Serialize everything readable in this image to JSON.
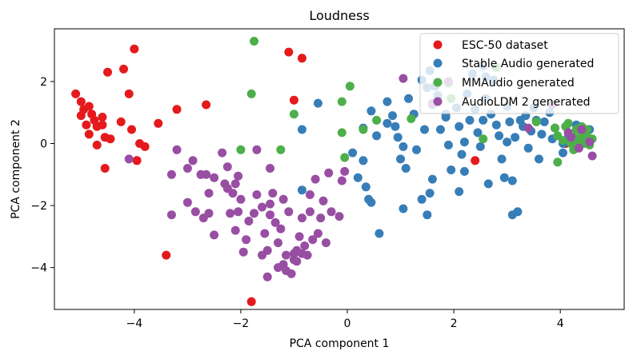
{
  "chart_data": {
    "type": "scatter",
    "title": "Loudness",
    "xlabel": "PCA component 1",
    "ylabel": "PCA component 2",
    "xlim": [
      -5.5,
      5.2
    ],
    "ylim": [
      -5.35,
      3.7
    ],
    "xticks": [
      -4,
      -2,
      0,
      2,
      4
    ],
    "yticks": [
      -4,
      -2,
      0,
      2
    ],
    "grid": false,
    "legend_position": "top-right",
    "series": [
      {
        "name": "ESC-50 dataset",
        "color": "#e41a1c",
        "points": [
          [
            -5.1,
            1.6
          ],
          [
            -5.0,
            1.35
          ],
          [
            -4.95,
            1.1
          ],
          [
            -5.0,
            0.9
          ],
          [
            -4.85,
            1.2
          ],
          [
            -4.8,
            0.95
          ],
          [
            -4.75,
            0.75
          ],
          [
            -4.9,
            0.6
          ],
          [
            -4.7,
            0.55
          ],
          [
            -4.6,
            0.85
          ],
          [
            -4.6,
            0.6
          ],
          [
            -4.85,
            0.3
          ],
          [
            -4.7,
            -0.05
          ],
          [
            -4.55,
            0.2
          ],
          [
            -4.45,
            0.15
          ],
          [
            -4.55,
            -0.8
          ],
          [
            -4.25,
            0.7
          ],
          [
            -4.05,
            0.45
          ],
          [
            -4.1,
            1.6
          ],
          [
            -3.9,
            0.0
          ],
          [
            -3.8,
            -0.1
          ],
          [
            -3.95,
            -0.55
          ],
          [
            -3.55,
            0.65
          ],
          [
            -4.5,
            2.3
          ],
          [
            -4.2,
            2.4
          ],
          [
            -4.0,
            3.05
          ],
          [
            -3.2,
            1.1
          ],
          [
            -2.65,
            1.25
          ],
          [
            -1.1,
            2.95
          ],
          [
            -0.85,
            2.75
          ],
          [
            -1.0,
            1.4
          ],
          [
            -3.4,
            -3.6
          ],
          [
            -1.8,
            -5.1
          ],
          [
            2.4,
            -0.55
          ],
          [
            4.1,
            0.0
          ]
        ]
      },
      {
        "name": "Stable Audio generated",
        "color": "#377eb8",
        "points": [
          [
            -0.55,
            1.3
          ],
          [
            -0.85,
            0.45
          ],
          [
            -0.85,
            -1.5
          ],
          [
            0.3,
            0.5
          ],
          [
            0.45,
            1.05
          ],
          [
            0.55,
            0.25
          ],
          [
            0.1,
            -0.3
          ],
          [
            0.2,
            -1.1
          ],
          [
            0.35,
            -1.4
          ],
          [
            0.4,
            -1.8
          ],
          [
            0.6,
            -2.9
          ],
          [
            0.75,
            1.35
          ],
          [
            0.85,
            0.9
          ],
          [
            0.9,
            0.55
          ],
          [
            0.95,
            0.2
          ],
          [
            1.0,
            -0.5
          ],
          [
            1.05,
            -0.1
          ],
          [
            1.15,
            1.45
          ],
          [
            1.25,
            0.95
          ],
          [
            1.3,
            -0.2
          ],
          [
            1.4,
            2.05
          ],
          [
            1.5,
            1.8
          ],
          [
            1.6,
            1.25
          ],
          [
            1.7,
            1.55
          ],
          [
            1.75,
            0.45
          ],
          [
            1.85,
            0.85
          ],
          [
            1.9,
            -0.05
          ],
          [
            1.95,
            -0.85
          ],
          [
            1.5,
            -2.3
          ],
          [
            1.4,
            -1.8
          ],
          [
            2.05,
            1.15
          ],
          [
            2.1,
            0.55
          ],
          [
            2.15,
            -0.35
          ],
          [
            2.2,
            -0.9
          ],
          [
            2.25,
            1.6
          ],
          [
            2.3,
            0.75
          ],
          [
            2.4,
            1.1
          ],
          [
            2.45,
            0.35
          ],
          [
            2.5,
            -0.1
          ],
          [
            2.55,
            0.75
          ],
          [
            2.6,
            1.45
          ],
          [
            2.65,
            -1.3
          ],
          [
            2.7,
            0.95
          ],
          [
            2.8,
            0.6
          ],
          [
            2.85,
            0.25
          ],
          [
            2.9,
            -0.5
          ],
          [
            3.0,
            1.2
          ],
          [
            3.05,
            0.7
          ],
          [
            3.1,
            -1.2
          ],
          [
            3.15,
            0.2
          ],
          [
            3.2,
            -2.2
          ],
          [
            3.3,
            0.55
          ],
          [
            3.35,
            0.9
          ],
          [
            3.4,
            -0.15
          ],
          [
            3.45,
            0.4
          ],
          [
            3.5,
            1.15
          ],
          [
            3.55,
            0.75
          ],
          [
            3.6,
            -0.5
          ],
          [
            3.65,
            0.3
          ],
          [
            3.7,
            0.7
          ],
          [
            3.8,
            1.0
          ],
          [
            3.85,
            0.15
          ],
          [
            3.9,
            0.5
          ],
          [
            4.05,
            -0.3
          ],
          [
            4.15,
            0.2
          ],
          [
            4.3,
            0.6
          ],
          [
            4.45,
            0.15
          ],
          [
            4.55,
            0.45
          ],
          [
            2.35,
            2.25
          ],
          [
            2.55,
            2.5
          ],
          [
            2.75,
            2.05
          ],
          [
            1.55,
            2.35
          ],
          [
            2.6,
            2.15
          ],
          [
            3.1,
            -2.3
          ],
          [
            1.55,
            -1.6
          ],
          [
            1.65,
            1.85
          ],
          [
            1.05,
            -2.1
          ],
          [
            2.1,
            -1.55
          ],
          [
            1.85,
            0.95
          ],
          [
            0.75,
            0.65
          ],
          [
            1.45,
            0.45
          ],
          [
            3.0,
            0.05
          ],
          [
            2.95,
            -1.1
          ],
          [
            2.2,
            0.05
          ],
          [
            1.1,
            -0.8
          ],
          [
            0.45,
            -1.9
          ],
          [
            0.3,
            -0.55
          ],
          [
            1.6,
            -1.15
          ],
          [
            3.25,
            0.75
          ],
          [
            4.05,
            0.0
          ]
        ]
      },
      {
        "name": "MMAudio generated",
        "color": "#4daf4a",
        "points": [
          [
            -1.75,
            3.3
          ],
          [
            -1.8,
            1.6
          ],
          [
            -1.0,
            0.95
          ],
          [
            -1.25,
            -0.2
          ],
          [
            -2.0,
            -0.2
          ],
          [
            -0.1,
            1.35
          ],
          [
            0.05,
            1.85
          ],
          [
            -0.1,
            0.35
          ],
          [
            0.3,
            0.45
          ],
          [
            0.55,
            0.75
          ],
          [
            -0.05,
            -0.45
          ],
          [
            1.2,
            0.8
          ],
          [
            1.9,
            1.95
          ],
          [
            1.95,
            1.45
          ],
          [
            3.55,
            0.7
          ],
          [
            3.9,
            0.5
          ],
          [
            3.95,
            0.25
          ],
          [
            3.95,
            -0.6
          ],
          [
            4.05,
            0.1
          ],
          [
            4.1,
            0.55
          ],
          [
            4.15,
            0.35
          ],
          [
            4.2,
            0.0
          ],
          [
            4.25,
            0.2
          ],
          [
            4.3,
            0.45
          ],
          [
            4.35,
            0.1
          ],
          [
            4.4,
            0.3
          ],
          [
            4.45,
            0.0
          ],
          [
            4.5,
            0.25
          ],
          [
            4.55,
            -0.05
          ],
          [
            4.6,
            0.15
          ],
          [
            4.3,
            -0.1
          ],
          [
            4.15,
            0.65
          ],
          [
            4.4,
            0.55
          ],
          [
            4.25,
            -0.2
          ],
          [
            4.5,
            0.45
          ],
          [
            2.8,
            2.45
          ],
          [
            2.55,
            0.15
          ]
        ]
      },
      {
        "name": "AudioLDM 2 generated",
        "color": "#984ea3",
        "points": [
          [
            -3.2,
            -0.2
          ],
          [
            -3.3,
            -1.0
          ],
          [
            -3.3,
            -2.3
          ],
          [
            -3.0,
            -0.8
          ],
          [
            -3.0,
            -1.9
          ],
          [
            -2.9,
            -0.55
          ],
          [
            -2.85,
            -2.2
          ],
          [
            -2.75,
            -1.0
          ],
          [
            -2.7,
            -2.4
          ],
          [
            -2.65,
            -1.0
          ],
          [
            -2.6,
            -1.6
          ],
          [
            -2.6,
            -2.25
          ],
          [
            -2.5,
            -2.95
          ],
          [
            -2.35,
            -0.3
          ],
          [
            -2.3,
            -1.3
          ],
          [
            -2.25,
            -1.45
          ],
          [
            -2.2,
            -2.25
          ],
          [
            -2.15,
            -1.6
          ],
          [
            -2.1,
            -1.3
          ],
          [
            -2.05,
            -2.2
          ],
          [
            -2.0,
            -1.8
          ],
          [
            -1.95,
            -3.5
          ],
          [
            -1.85,
            -2.5
          ],
          [
            -1.7,
            -0.2
          ],
          [
            -1.7,
            -1.65
          ],
          [
            -1.6,
            -2.05
          ],
          [
            -1.55,
            -2.9
          ],
          [
            -1.5,
            -3.45
          ],
          [
            -1.45,
            -0.8
          ],
          [
            -1.45,
            -2.3
          ],
          [
            -1.4,
            -1.6
          ],
          [
            -1.35,
            -2.55
          ],
          [
            -1.3,
            -3.2
          ],
          [
            -1.25,
            -2.75
          ],
          [
            -1.2,
            -1.8
          ],
          [
            -1.15,
            -3.6
          ],
          [
            -1.1,
            -2.2
          ],
          [
            -1.05,
            -4.2
          ],
          [
            -1.0,
            -3.75
          ],
          [
            -0.95,
            -3.45
          ],
          [
            -0.9,
            -3.0
          ],
          [
            -0.85,
            -2.4
          ],
          [
            -0.8,
            -3.3
          ],
          [
            -0.75,
            -3.6
          ],
          [
            -0.7,
            -2.2
          ],
          [
            -0.65,
            -3.1
          ],
          [
            -0.6,
            -1.15
          ],
          [
            -0.55,
            -2.9
          ],
          [
            -0.5,
            -2.4
          ],
          [
            -0.45,
            -1.85
          ],
          [
            -0.4,
            -3.2
          ],
          [
            -0.35,
            -0.95
          ],
          [
            -0.3,
            -2.2
          ],
          [
            -0.15,
            -2.35
          ],
          [
            -0.1,
            -1.2
          ],
          [
            -0.05,
            -0.9
          ],
          [
            -1.3,
            -4.0
          ],
          [
            -1.2,
            -3.9
          ],
          [
            -1.15,
            -4.1
          ],
          [
            -1.0,
            -3.55
          ],
          [
            -0.95,
            -3.8
          ],
          [
            -0.85,
            -3.55
          ],
          [
            -1.5,
            -4.3
          ],
          [
            -1.6,
            -3.6
          ],
          [
            -2.5,
            -1.1
          ],
          [
            -4.1,
            -0.5
          ],
          [
            -1.75,
            -2.25
          ],
          [
            -1.9,
            -3.1
          ],
          [
            -2.1,
            -2.8
          ],
          [
            -2.25,
            -0.75
          ],
          [
            -2.05,
            -1.05
          ],
          [
            -1.45,
            -1.95
          ],
          [
            -0.7,
            -1.65
          ],
          [
            4.6,
            -0.4
          ],
          [
            4.2,
            0.2
          ],
          [
            3.85,
            1.25
          ],
          [
            3.4,
            0.5
          ],
          [
            1.6,
            1.3
          ],
          [
            1.05,
            2.1
          ],
          [
            1.9,
            2.0
          ],
          [
            4.15,
            0.35
          ],
          [
            4.35,
            -0.15
          ],
          [
            4.55,
            0.05
          ],
          [
            4.4,
            0.45
          ]
        ]
      }
    ]
  }
}
